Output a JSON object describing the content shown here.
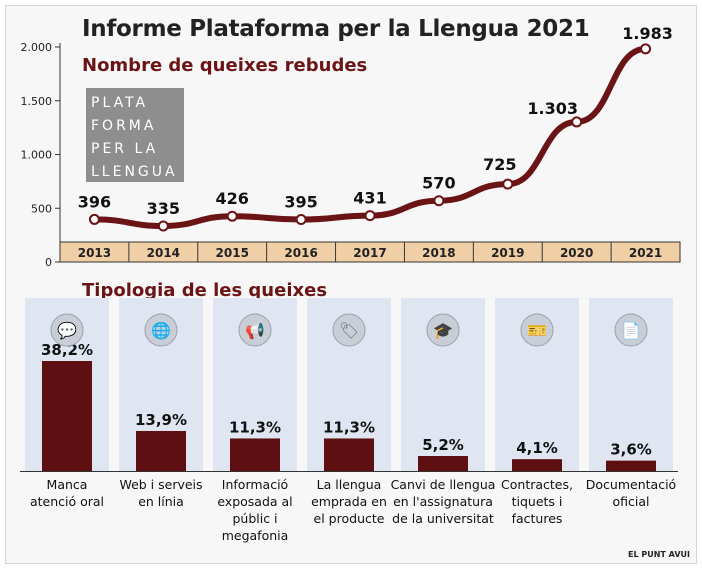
{
  "title": "Informe Plataforma per la Llengua 2021",
  "line_subtitle": "Nombre de queixes rebudes",
  "bar_subtitle": "Tipologia de les queixes",
  "logo_lines": [
    "PLATA",
    "FORMA",
    "PER LA",
    "LLENGUA"
  ],
  "credit": "EL PUNT AVUI",
  "colors": {
    "accent": "#6b1416",
    "bar": "#5e0f12",
    "axis_band": "#f0cfa6",
    "panel": "#dfe6f2"
  },
  "chart_data": [
    {
      "type": "line",
      "x": [
        "2013",
        "2014",
        "2015",
        "2016",
        "2017",
        "2018",
        "2019",
        "2020",
        "2021"
      ],
      "values": [
        396,
        335,
        426,
        395,
        431,
        570,
        725,
        1303,
        1983
      ],
      "value_labels": [
        "396",
        "335",
        "426",
        "395",
        "431",
        "570",
        "725",
        "1.303",
        "1.983"
      ],
      "ylim": [
        0,
        2000
      ],
      "yticks": [
        0,
        500,
        1000,
        1500,
        2000
      ],
      "ytick_labels": [
        "0",
        "500",
        "1.000",
        "1.500",
        "2.000"
      ],
      "grid": false
    },
    {
      "type": "bar",
      "categories": [
        [
          "Manca",
          "atenció oral"
        ],
        [
          "Web i serveis",
          "en línia"
        ],
        [
          "Informació",
          "exposada al",
          "públic i",
          "megafonia"
        ],
        [
          "La llengua",
          "emprada en",
          "el producte"
        ],
        [
          "Canvi de llengua",
          "en l'assignatura",
          "de la universitat"
        ],
        [
          "Contractes,",
          "tiquets i",
          "factures"
        ],
        [
          "Documentació",
          "oficial"
        ]
      ],
      "values": [
        38.2,
        13.9,
        11.3,
        11.3,
        5.2,
        4.1,
        3.6
      ],
      "value_labels": [
        "38,2%",
        "13,9%",
        "11,3%",
        "11,3%",
        "5,2%",
        "4,1%",
        "3,6%"
      ],
      "icons": [
        "chat-users-icon",
        "web-globe-icon",
        "megaphone-icon",
        "product-tag-icon",
        "graduation-icon",
        "tickets-icon",
        "documents-cloud-icon"
      ]
    }
  ]
}
